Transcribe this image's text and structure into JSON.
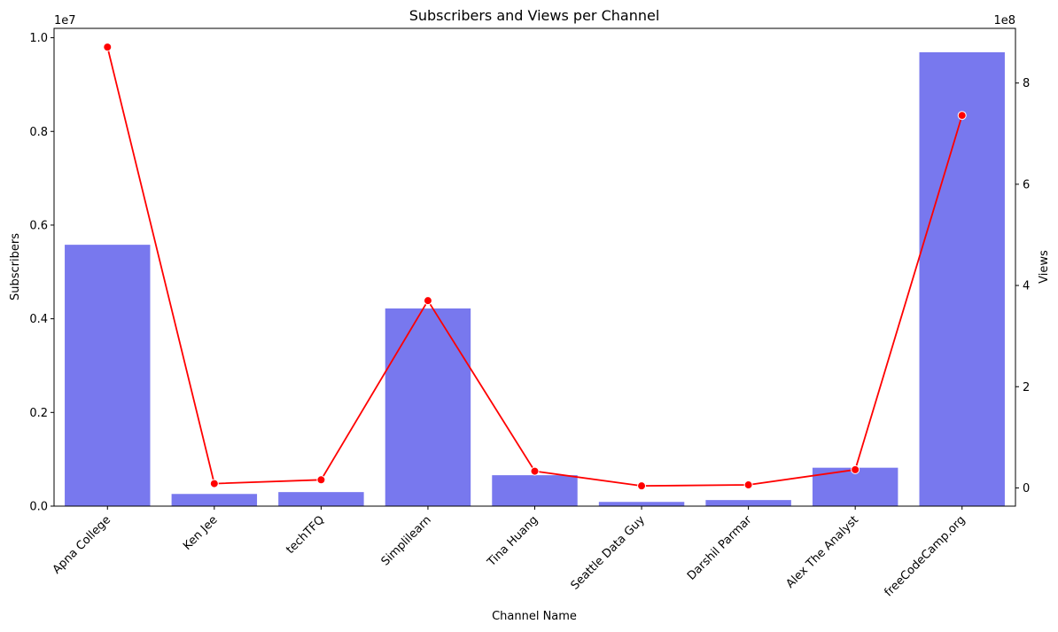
{
  "chart_data": {
    "type": "bar",
    "title": "Subscribers and Views per Channel",
    "xlabel": "Channel Name",
    "ylabel": "Subscribers",
    "ylabel_color": "#0000ff",
    "y2label": "Views",
    "y2label_color": "#ff0000",
    "categories": [
      "Apna College",
      "Ken Jee",
      "techTFQ",
      "Simplilearn",
      "Tina Huang",
      "Seattle Data Guy",
      "Darshil Parmar",
      "Alex The Analyst",
      "freeCodeCamp.org"
    ],
    "series": [
      {
        "kind": "bar",
        "axis": "left",
        "color": "#7878ee",
        "values": [
          5580000,
          260000,
          300000,
          4220000,
          660000,
          90000,
          130000,
          820000,
          9690000
        ]
      },
      {
        "kind": "line",
        "axis": "right",
        "color": "#ff0000",
        "marker": "circle",
        "values": [
          871000000,
          8500000,
          16000000,
          370000000,
          33000000,
          4000000,
          6000000,
          36000000,
          736000000
        ]
      }
    ],
    "ylim": [
      0,
      10200000
    ],
    "y2lim": [
      -36000000,
      908000000
    ],
    "yticks": [
      0,
      2000000,
      4000000,
      6000000,
      8000000,
      10000000
    ],
    "ytick_labels": [
      "0.0",
      "0.2",
      "0.4",
      "0.6",
      "0.8",
      "1.0"
    ],
    "y_offset_label": "1e7",
    "y2ticks": [
      0,
      200000000,
      400000000,
      600000000,
      800000000
    ],
    "y2tick_labels": [
      "0",
      "2",
      "4",
      "6",
      "8"
    ],
    "y2_offset_label": "1e8",
    "grid": false,
    "xtick_rotation": 45
  }
}
